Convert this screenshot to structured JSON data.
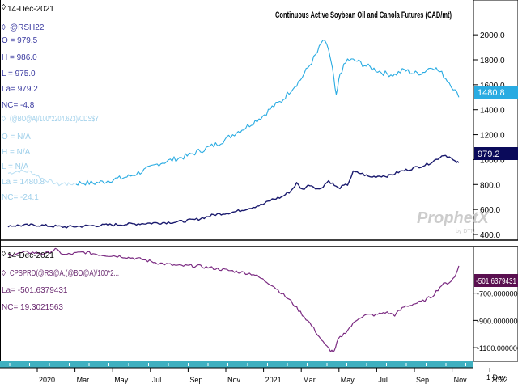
{
  "upper_panel": {
    "date": "14-Dec-2021",
    "title": "Continuous Active Soybean Oil and Canola Futures (CAD/mt)",
    "symbol1": "@RSH22",
    "open1": "O = 979.5",
    "high1": "H = 986.0",
    "low1": "L = 975.0",
    "last1": "La= 979.2",
    "change1": "NC= -4.8",
    "symbol2": "(@BO@A)/100*2204.623)/CDS$Y",
    "open2": "O = N/A",
    "high2": "H = N/A",
    "low2": "L = N/A",
    "last2": "La = 1480.8",
    "change2": "NC= -24.1",
    "last_tag_oil": "1480.8",
    "last_tag_canola": "979.2",
    "watermark": "ProphetX",
    "watermark_sub": "by DTN"
  },
  "lower_panel": {
    "date": "14-Dec-2021",
    "symbol": "CPSPRD(@RS@A,(@BO@A)/100*2...",
    "last": "La= -501.6379431",
    "change": "NC= 19.3021563",
    "last_tag": "-501.6379431"
  },
  "time_axis": {
    "labels": [
      "2020",
      "Mar",
      "May",
      "Jul",
      "Sep",
      "Nov",
      "2021",
      "Mar",
      "May",
      "Jul",
      "Sep",
      "Nov",
      "2022"
    ],
    "period": "1 Day"
  },
  "colors": {
    "soybean_oil": "#29abe2",
    "canola": "#1a1a6e",
    "spread": "#7b2b82",
    "tag_oil": "#29abe2",
    "tag_canola": "#0a0a5a",
    "tag_spread": "#5a1050",
    "legend_text_blue": "#3a3aa0",
    "legend_text_faded": "#9ecfea",
    "spread_legend": "#6a2a70",
    "scroll_bar": "#4ab8c8"
  },
  "chart_data": [
    {
      "type": "line",
      "title": "Continuous Active Soybean Oil and Canola Futures (CAD/mt)",
      "x_unit": "months since Jan 2020",
      "ylim": [
        400,
        2150
      ],
      "y_ticks": [
        400,
        600,
        800,
        1000,
        1200,
        1400,
        1600,
        1800,
        2000
      ],
      "series": [
        {
          "name": "(@BO@A)/100*2204.623)/CDS$Y",
          "points": [
            [
              0,
              890
            ],
            [
              0.6,
              910
            ],
            [
              1.2,
              900
            ],
            [
              1.8,
              850
            ],
            [
              2.3,
              820
            ],
            [
              2.7,
              800
            ],
            [
              3.0,
              810
            ],
            [
              3.2,
              800
            ],
            [
              3.6,
              810
            ],
            [
              4.0,
              815
            ],
            [
              4.5,
              810
            ],
            [
              5.0,
              820
            ],
            [
              5.5,
              840
            ],
            [
              6.0,
              850
            ],
            [
              6.5,
              870
            ],
            [
              7.0,
              900
            ],
            [
              7.5,
              930
            ],
            [
              8.0,
              970
            ],
            [
              8.5,
              990
            ],
            [
              9.0,
              1010
            ],
            [
              9.5,
              1030
            ],
            [
              10.0,
              1060
            ],
            [
              10.5,
              1090
            ],
            [
              11.0,
              1120
            ],
            [
              11.5,
              1160
            ],
            [
              12.0,
              1210
            ],
            [
              12.5,
              1250
            ],
            [
              13.0,
              1300
            ],
            [
              13.5,
              1350
            ],
            [
              14.0,
              1420
            ],
            [
              14.5,
              1470
            ],
            [
              15.0,
              1560
            ],
            [
              15.5,
              1640
            ],
            [
              16.0,
              1760
            ],
            [
              16.4,
              1860
            ],
            [
              16.7,
              1960
            ],
            [
              17.0,
              1880
            ],
            [
              17.2,
              1720
            ],
            [
              17.4,
              1500
            ],
            [
              17.6,
              1690
            ],
            [
              18.0,
              1800
            ],
            [
              18.5,
              1790
            ],
            [
              19.0,
              1750
            ],
            [
              19.5,
              1720
            ],
            [
              20.0,
              1690
            ],
            [
              20.5,
              1680
            ],
            [
              21.0,
              1720
            ],
            [
              21.5,
              1690
            ],
            [
              22.0,
              1700
            ],
            [
              22.5,
              1750
            ],
            [
              23.0,
              1690
            ],
            [
              23.5,
              1600
            ],
            [
              23.9,
              1500
            ]
          ]
        },
        {
          "name": "@RSH22",
          "points": [
            [
              0,
              470
            ],
            [
              1.5,
              475
            ],
            [
              3.0,
              460
            ],
            [
              4.5,
              470
            ],
            [
              6.0,
              480
            ],
            [
              7.5,
              490
            ],
            [
              9.0,
              500
            ],
            [
              10.0,
              520
            ],
            [
              10.5,
              540
            ],
            [
              11.0,
              560
            ],
            [
              12.0,
              580
            ],
            [
              12.5,
              600
            ],
            [
              13.0,
              620
            ],
            [
              13.5,
              640
            ],
            [
              14.0,
              680
            ],
            [
              14.5,
              700
            ],
            [
              15.0,
              750
            ],
            [
              15.3,
              810
            ],
            [
              15.6,
              760
            ],
            [
              16.0,
              800
            ],
            [
              16.5,
              760
            ],
            [
              17.0,
              830
            ],
            [
              17.5,
              770
            ],
            [
              18.0,
              800
            ],
            [
              18.3,
              900
            ],
            [
              18.7,
              890
            ],
            [
              19.2,
              860
            ],
            [
              19.7,
              870
            ],
            [
              20.2,
              870
            ],
            [
              20.7,
              900
            ],
            [
              21.2,
              920
            ],
            [
              21.7,
              940
            ],
            [
              22.2,
              960
            ],
            [
              22.7,
              1000
            ],
            [
              23.1,
              1040
            ],
            [
              23.4,
              1020
            ],
            [
              23.7,
              980
            ],
            [
              23.9,
              975
            ]
          ]
        }
      ]
    },
    {
      "type": "line",
      "x_unit": "months since Jan 2020",
      "ylim": [
        -1200,
        -400
      ],
      "y_ticks": [
        -1100,
        -900,
        -700
      ],
      "series": [
        {
          "name": "CPSPRD(@RS@A,(@BO@A)/100*2...",
          "points": [
            [
              0,
              -420
            ],
            [
              1.0,
              -400
            ],
            [
              2.0,
              -410
            ],
            [
              2.5,
              -380
            ],
            [
              3.0,
              -420
            ],
            [
              4.0,
              -400
            ],
            [
              5.0,
              -420
            ],
            [
              6.0,
              -430
            ],
            [
              7.0,
              -450
            ],
            [
              8.0,
              -480
            ],
            [
              9.0,
              -500
            ],
            [
              10.0,
              -500
            ],
            [
              11.0,
              -520
            ],
            [
              12.0,
              -540
            ],
            [
              13.0,
              -560
            ],
            [
              13.5,
              -600
            ],
            [
              14.0,
              -640
            ],
            [
              14.5,
              -700
            ],
            [
              15.0,
              -760
            ],
            [
              15.5,
              -840
            ],
            [
              16.0,
              -920
            ],
            [
              16.4,
              -1000
            ],
            [
              16.8,
              -1080
            ],
            [
              17.1,
              -1120
            ],
            [
              17.3,
              -1130
            ],
            [
              17.5,
              -1040
            ],
            [
              17.8,
              -1000
            ],
            [
              18.2,
              -940
            ],
            [
              18.6,
              -880
            ],
            [
              19.0,
              -860
            ],
            [
              19.5,
              -860
            ],
            [
              20.0,
              -840
            ],
            [
              20.5,
              -860
            ],
            [
              21.0,
              -800
            ],
            [
              21.5,
              -780
            ],
            [
              22.0,
              -760
            ],
            [
              22.5,
              -720
            ],
            [
              23.0,
              -640
            ],
            [
              23.4,
              -620
            ],
            [
              23.7,
              -580
            ],
            [
              23.9,
              -500
            ]
          ]
        }
      ]
    }
  ]
}
